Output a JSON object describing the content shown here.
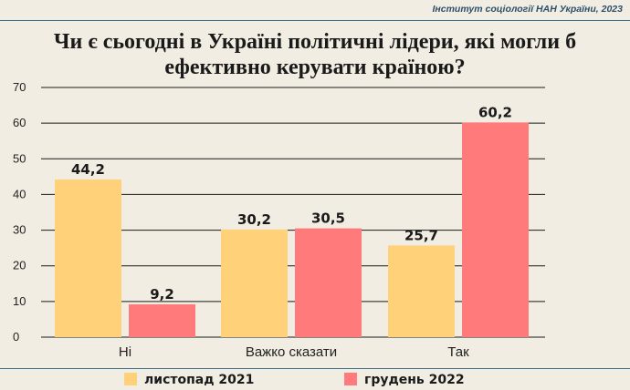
{
  "source": "Інститут соціології НАН України, 2023",
  "chart_data": {
    "type": "bar",
    "title": "Чи є сьогодні в Україні політичні лідери, які могли б ефективно керувати країною?",
    "title_lines": [
      "Чи є сьогодні в Україні політичні лідери, які могли б",
      "ефективно керувати країною?"
    ],
    "categories": [
      "Ні",
      "Важко сказати",
      "Так"
    ],
    "series": [
      {
        "name": "листопад 2021",
        "values": [
          44.2,
          30.2,
          25.7
        ],
        "labels": [
          "44,2",
          "30,2",
          "25,7"
        ],
        "color": "#ffd27a"
      },
      {
        "name": "грудень 2022",
        "values": [
          9.2,
          30.5,
          60.2
        ],
        "labels": [
          "9,2",
          "30,5",
          "60,2"
        ],
        "color": "#ff7b7b"
      }
    ],
    "ylim": [
      0,
      70
    ],
    "yticks": [
      0,
      10,
      20,
      30,
      40,
      50,
      60,
      70
    ],
    "grid": true,
    "legend": "bottom"
  }
}
